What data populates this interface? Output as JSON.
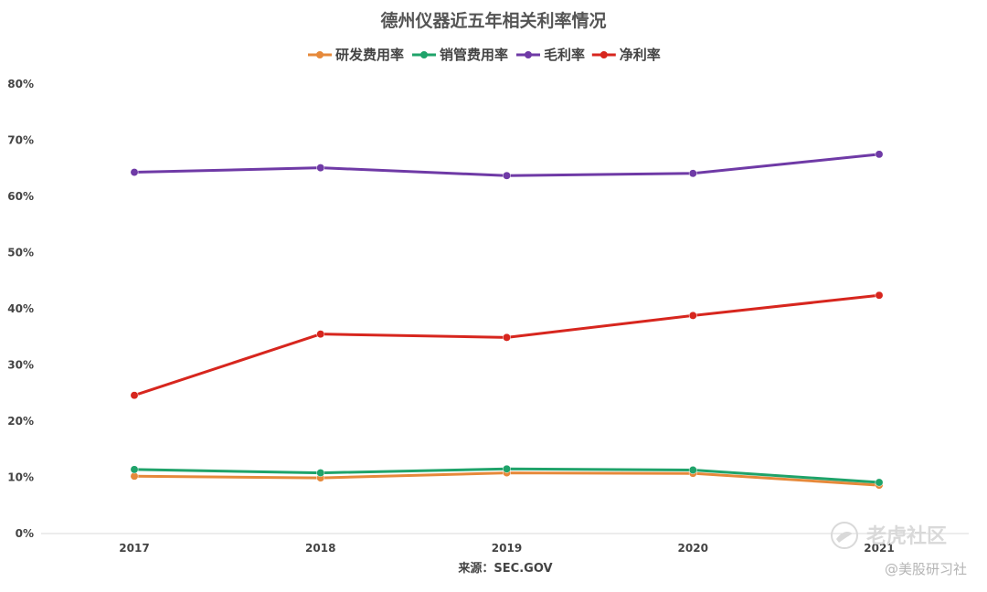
{
  "chart_data": {
    "type": "line",
    "title": "德州仪器近五年相关利率情况",
    "categories": [
      "2017",
      "2018",
      "2019",
      "2020",
      "2021"
    ],
    "y_ticks": [
      "0%",
      "10%",
      "20%",
      "30%",
      "40%",
      "50%",
      "60%",
      "70%",
      "80%"
    ],
    "ylim": [
      0,
      80
    ],
    "grid": false,
    "legend_position": "top-center",
    "series": [
      {
        "name": "研发费用率",
        "color": "#e6893a",
        "values": [
          10.2,
          9.9,
          10.8,
          10.7,
          8.6
        ]
      },
      {
        "name": "销管费用率",
        "color": "#1fa36a",
        "values": [
          11.4,
          10.8,
          11.5,
          11.3,
          9.1
        ]
      },
      {
        "name": "毛利率",
        "color": "#6f3aa6",
        "values": [
          64.3,
          65.1,
          63.7,
          64.1,
          67.5
        ]
      },
      {
        "name": "净利率",
        "color": "#d7261e",
        "values": [
          24.6,
          35.5,
          34.9,
          38.8,
          42.4
        ]
      }
    ],
    "source": "来源：SEC.GOV"
  },
  "watermark": {
    "community": "老虎社区",
    "author": "@美股研习社"
  }
}
